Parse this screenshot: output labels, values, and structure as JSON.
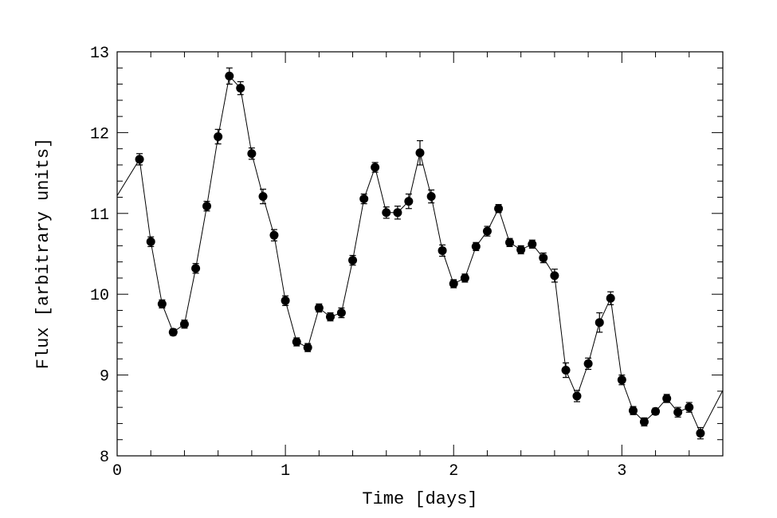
{
  "chart_data": {
    "type": "line",
    "title": "",
    "xlabel": "Time [days]",
    "ylabel": "Flux [arbitrary units]",
    "xlim": [
      0,
      3.6
    ],
    "ylim": [
      8,
      13
    ],
    "xticks": [
      0,
      1,
      2,
      3
    ],
    "yticks": [
      8,
      9,
      10,
      11,
      12,
      13
    ],
    "xtick_labels": [
      "0",
      "1",
      "2",
      "3"
    ],
    "ytick_labels": [
      "8",
      "9",
      "10",
      "11",
      "12",
      "13"
    ],
    "grid": false,
    "line_start": [
      0,
      11.22
    ],
    "line_end": [
      3.6,
      8.81
    ],
    "series": [
      {
        "name": "flux",
        "color": "#000000",
        "x": [
          0.133,
          0.2,
          0.267,
          0.333,
          0.4,
          0.467,
          0.533,
          0.6,
          0.667,
          0.733,
          0.8,
          0.867,
          0.933,
          1.0,
          1.067,
          1.133,
          1.2,
          1.267,
          1.333,
          1.4,
          1.467,
          1.533,
          1.6,
          1.667,
          1.733,
          1.8,
          1.867,
          1.933,
          2.0,
          2.067,
          2.133,
          2.2,
          2.267,
          2.333,
          2.4,
          2.467,
          2.533,
          2.6,
          2.667,
          2.733,
          2.8,
          2.867,
          2.933,
          3.0,
          3.067,
          3.133,
          3.2,
          3.267,
          3.333,
          3.4,
          3.467
        ],
        "y": [
          11.67,
          10.65,
          9.88,
          9.53,
          9.63,
          10.32,
          11.09,
          11.95,
          12.7,
          12.55,
          11.74,
          11.21,
          10.73,
          9.92,
          9.41,
          9.34,
          9.83,
          9.72,
          9.77,
          10.42,
          11.18,
          11.57,
          11.01,
          11.01,
          11.15,
          11.75,
          11.21,
          10.54,
          10.13,
          10.2,
          10.59,
          10.78,
          11.06,
          10.64,
          10.55,
          10.62,
          10.45,
          10.23,
          9.06,
          8.74,
          9.14,
          9.65,
          9.95,
          8.94,
          8.56,
          8.42,
          8.55,
          8.71,
          8.54,
          8.6,
          8.28
        ],
        "yerr": [
          0.07,
          0.06,
          0.05,
          0.04,
          0.05,
          0.06,
          0.06,
          0.09,
          0.1,
          0.08,
          0.07,
          0.09,
          0.07,
          0.06,
          0.05,
          0.05,
          0.05,
          0.05,
          0.06,
          0.06,
          0.06,
          0.06,
          0.07,
          0.08,
          0.09,
          0.15,
          0.08,
          0.07,
          0.05,
          0.05,
          0.05,
          0.06,
          0.05,
          0.05,
          0.05,
          0.05,
          0.06,
          0.08,
          0.09,
          0.07,
          0.07,
          0.12,
          0.08,
          0.06,
          0.05,
          0.05,
          0.04,
          0.05,
          0.06,
          0.06,
          0.07
        ]
      }
    ]
  }
}
